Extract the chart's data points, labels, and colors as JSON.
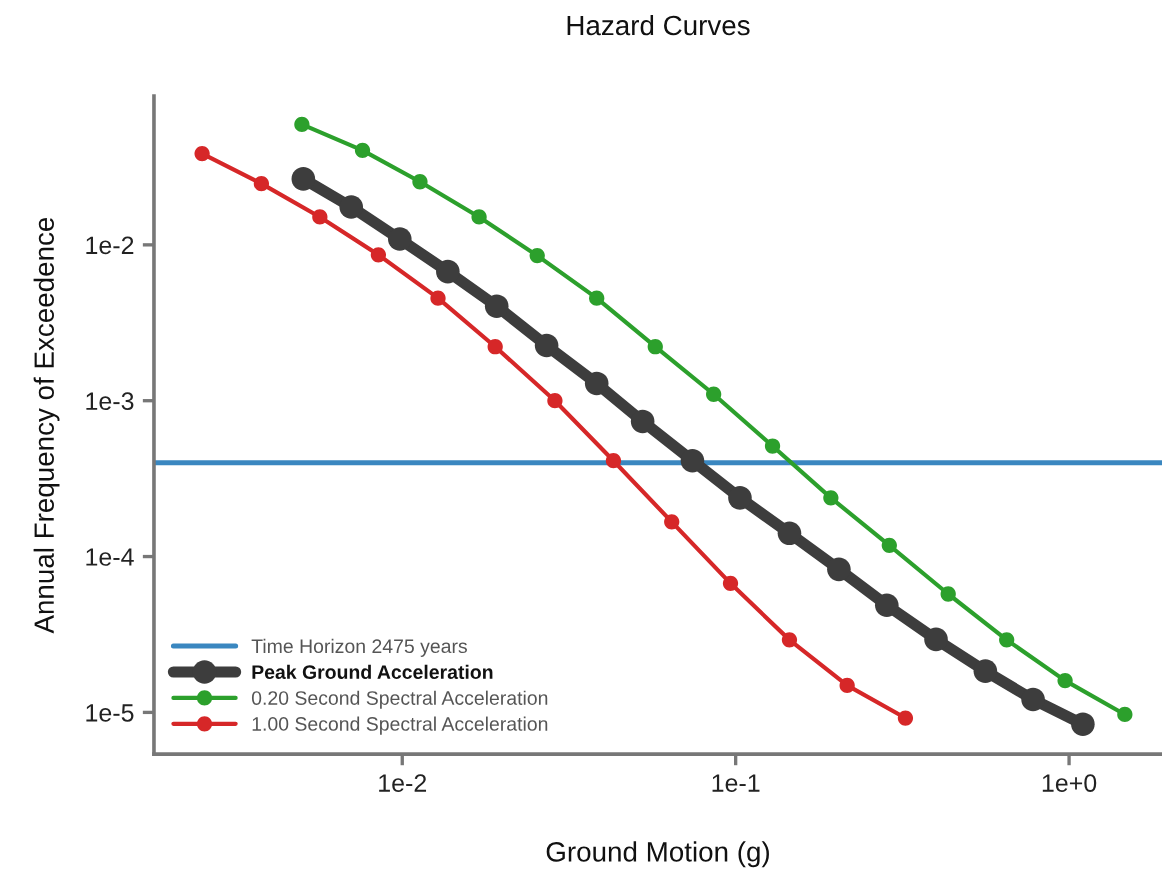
{
  "chart_data": {
    "type": "line",
    "title": "Hazard Curves",
    "xlabel": "Ground Motion (g)",
    "ylabel": "Annual Frequency of Exceedence",
    "log": "xy",
    "xlim": [
      0.0018,
      1.9
    ],
    "ylim": [
      5.4e-06,
      0.09
    ],
    "xticks": [
      {
        "value": 0.01,
        "label": "1e-2"
      },
      {
        "value": 0.1,
        "label": "1e-1"
      },
      {
        "value": 1,
        "label": "1e+0"
      }
    ],
    "yticks": [
      {
        "value": 1e-05,
        "label": "1e-5"
      },
      {
        "value": 0.0001,
        "label": "1e-4"
      },
      {
        "value": 0.001,
        "label": "1e-3"
      },
      {
        "value": 0.01,
        "label": "1e-2"
      }
    ],
    "marker": "circle",
    "grid": false,
    "legend": "bottom left",
    "ref_lines": [
      {
        "axis": "y",
        "value": 0.0004,
        "label": "Time Horizon 2475 years",
        "color": "#3a87c0"
      }
    ],
    "series": [
      {
        "name": "Peak Ground Acceleration",
        "color": "#3d3d3d",
        "x": [
          0.00505,
          0.00703,
          0.00983,
          0.0137,
          0.0192,
          0.0271,
          0.0383,
          0.0526,
          0.0742,
          0.103,
          0.145,
          0.204,
          0.284,
          0.399,
          0.561,
          0.78,
          1.1
        ],
        "values": [
          0.0265,
          0.0175,
          0.0109,
          0.00673,
          0.00404,
          0.00226,
          0.00129,
          0.000736,
          0.000412,
          0.000238,
          0.000141,
          8.28e-05,
          4.87e-05,
          2.94e-05,
          1.84e-05,
          1.21e-05,
          8.4e-06
        ]
      },
      {
        "name": "0.20 Second Spectral Acceleration",
        "color": "#2ca02c",
        "x": [
          0.005,
          0.0076,
          0.0113,
          0.017,
          0.0254,
          0.0383,
          0.0574,
          0.0859,
          0.129,
          0.193,
          0.289,
          0.434,
          0.65,
          0.973,
          1.47
        ],
        "values": [
          0.0593,
          0.0404,
          0.0254,
          0.0151,
          0.00853,
          0.00455,
          0.00222,
          0.0011,
          0.000512,
          0.000238,
          0.000118,
          5.75e-05,
          2.92e-05,
          1.6e-05,
          9.7e-06
        ]
      },
      {
        "name": "1.00 Second Spectral Acceleration",
        "color": "#d62728",
        "x": [
          0.00251,
          0.00378,
          0.00566,
          0.00848,
          0.0128,
          0.019,
          0.0287,
          0.043,
          0.0643,
          0.0965,
          0.145,
          0.216,
          0.323
        ],
        "values": [
          0.0385,
          0.0247,
          0.0151,
          0.00863,
          0.00455,
          0.00222,
          0.001,
          0.000412,
          0.000167,
          6.73e-05,
          2.92e-05,
          1.49e-05,
          9.2e-06
        ]
      }
    ]
  }
}
